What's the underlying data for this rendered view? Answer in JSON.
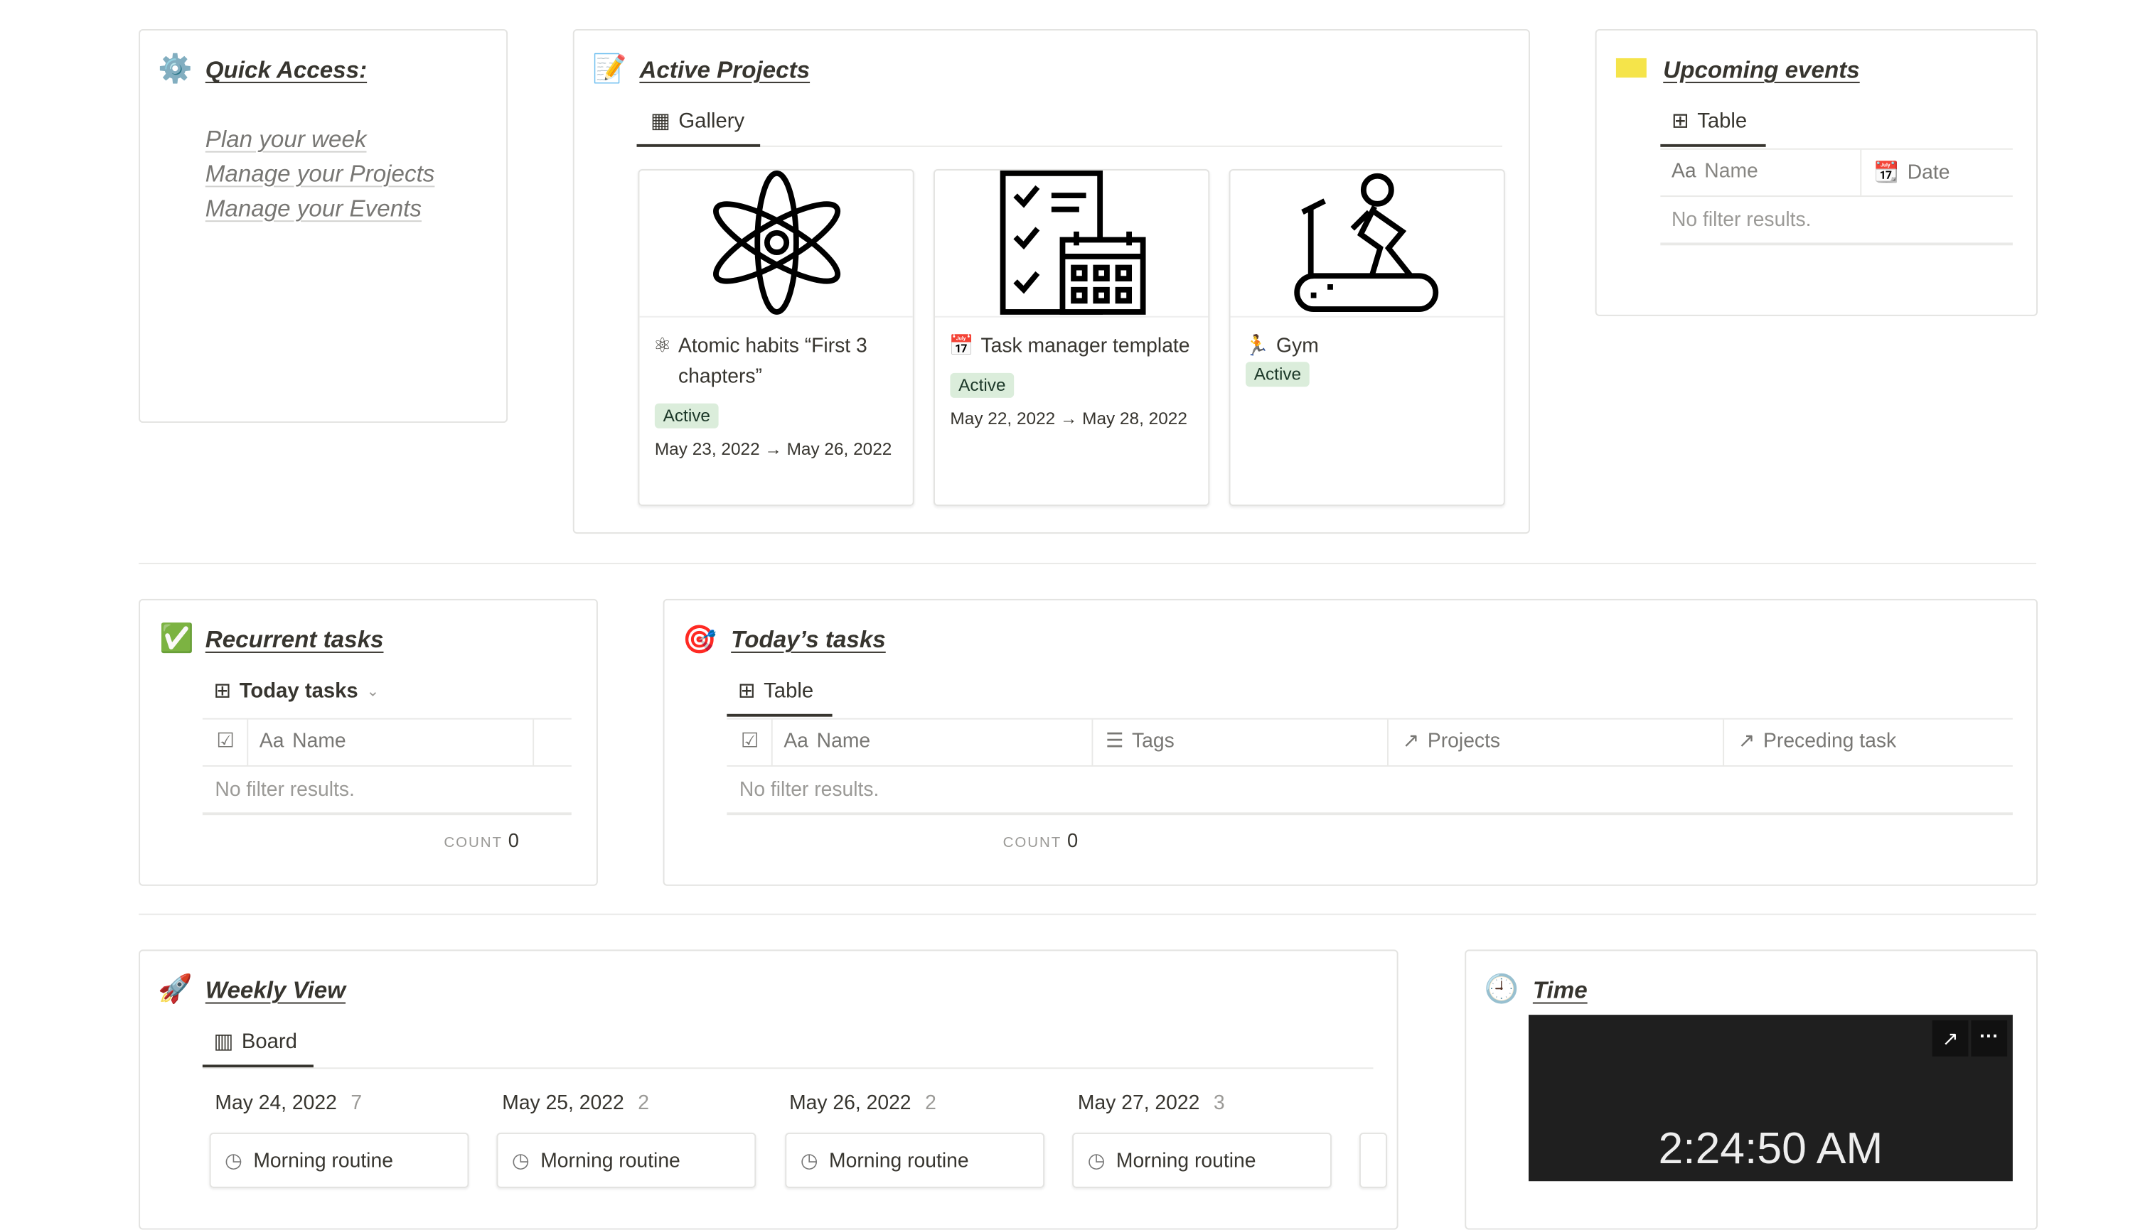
{
  "quick_access": {
    "title": "Quick Access:",
    "icon": "gear-icon",
    "links": [
      "Plan your week",
      "Manage your Projects",
      "Manage your Events"
    ]
  },
  "active_projects": {
    "title": "Active Projects",
    "icon": "memo-icon",
    "view": "Gallery",
    "cards": [
      {
        "name": "Atomic habits “First 3 chapters”",
        "status": "Active",
        "date": "May 23, 2022 → May 26, 2022",
        "icon": "atom-icon"
      },
      {
        "name": "Task manager template",
        "status": "Active",
        "date": "May 22, 2022 → May 28, 2022",
        "icon": "checklist-calendar-icon"
      },
      {
        "name": "Gym",
        "status": "Active",
        "date": "",
        "icon": "treadmill-icon"
      }
    ]
  },
  "upcoming_events": {
    "title": "Upcoming events",
    "icon": "ticket-icon",
    "view": "Table",
    "columns": [
      "Name",
      "Date"
    ],
    "empty": "No filter results."
  },
  "recurrent_tasks": {
    "title": "Recurrent tasks",
    "icon": "check-mark-icon",
    "view": "Today tasks",
    "columns": [
      "Name"
    ],
    "empty": "No filter results.",
    "count_label": "COUNT",
    "count": "0"
  },
  "todays_tasks": {
    "title": "Today’s tasks",
    "icon": "target-icon",
    "view": "Table",
    "columns": [
      "Name",
      "Tags",
      "Projects",
      "Preceding task"
    ],
    "empty": "No filter results.",
    "count_label": "COUNT",
    "count": "0"
  },
  "weekly_view": {
    "title": "Weekly View",
    "icon": "rocket-icon",
    "view": "Board",
    "columns": [
      {
        "date": "May 24, 2022",
        "count": "7",
        "first": "Morning routine"
      },
      {
        "date": "May 25, 2022",
        "count": "2",
        "first": "Morning routine"
      },
      {
        "date": "May 26, 2022",
        "count": "2",
        "first": "Morning routine"
      },
      {
        "date": "May 27, 2022",
        "count": "3",
        "first": "Morning routine"
      }
    ]
  },
  "time": {
    "title": "Time",
    "icon": "clock-icon",
    "clock": "2:24:50 AM"
  },
  "aa": "Aa"
}
